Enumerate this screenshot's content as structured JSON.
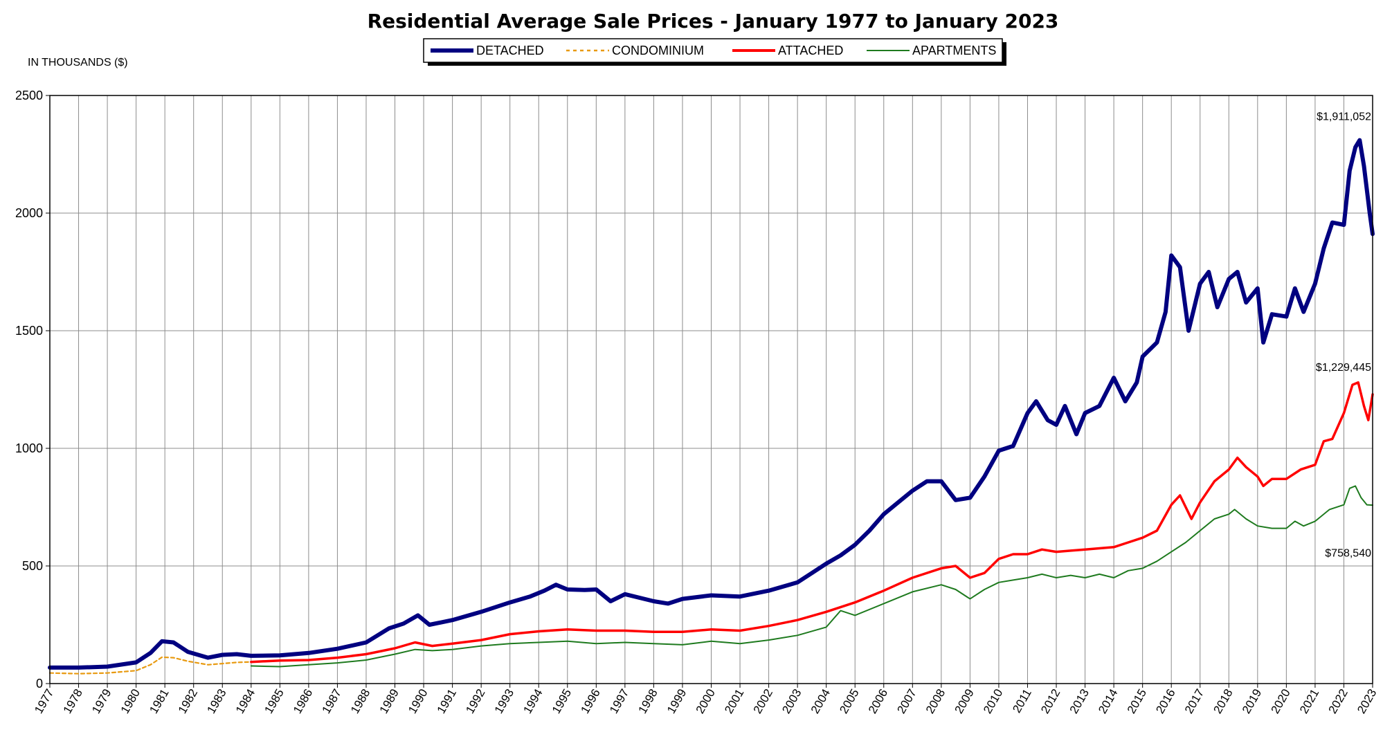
{
  "chart_data": {
    "type": "line",
    "title": "Residential Average Sale Prices  -  January 1977 to January 2023",
    "ylabel": "IN THOUSANDS ($)",
    "ylim": [
      0,
      2500
    ],
    "yticks": [
      0,
      500,
      1000,
      1500,
      2000,
      2500
    ],
    "xlim": [
      1977,
      2023
    ],
    "x_tick_labels": [
      "1977",
      "1978",
      "1979",
      "1980",
      "1981",
      "1982",
      "1983",
      "1984",
      "1985",
      "1986",
      "1987",
      "1988",
      "1989",
      "1990",
      "1991",
      "1992",
      "1993",
      "1994",
      "1995",
      "1996",
      "1997",
      "1998",
      "1999",
      "2000",
      "2001",
      "2002",
      "2003",
      "2004",
      "2005",
      "2006",
      "2007",
      "2008",
      "2009",
      "2010",
      "2011",
      "2012",
      "2013",
      "2014",
      "2015",
      "2016",
      "2017",
      "2018",
      "2019",
      "2020",
      "2021",
      "2022",
      "2023"
    ],
    "grid": true,
    "legend_position": "top-center",
    "series": [
      {
        "name": "DETACHED",
        "color": "#000080",
        "style": "solid-thick",
        "points": [
          [
            1977,
            68
          ],
          [
            1978,
            68
          ],
          [
            1979,
            72
          ],
          [
            1980,
            90
          ],
          [
            1980.5,
            130
          ],
          [
            1980.9,
            180
          ],
          [
            1981.3,
            175
          ],
          [
            1981.8,
            135
          ],
          [
            1982.5,
            110
          ],
          [
            1983,
            122
          ],
          [
            1983.5,
            125
          ],
          [
            1984,
            118
          ],
          [
            1985,
            120
          ],
          [
            1986,
            130
          ],
          [
            1987,
            148
          ],
          [
            1988,
            175
          ],
          [
            1988.8,
            235
          ],
          [
            1989.3,
            255
          ],
          [
            1989.8,
            290
          ],
          [
            1990.2,
            250
          ],
          [
            1991,
            270
          ],
          [
            1992,
            305
          ],
          [
            1993,
            345
          ],
          [
            1993.7,
            370
          ],
          [
            1994.2,
            395
          ],
          [
            1994.6,
            420
          ],
          [
            1995,
            400
          ],
          [
            1995.6,
            398
          ],
          [
            1996,
            400
          ],
          [
            1996.5,
            350
          ],
          [
            1997,
            380
          ],
          [
            1998,
            350
          ],
          [
            1998.5,
            340
          ],
          [
            1999,
            360
          ],
          [
            2000,
            375
          ],
          [
            2001,
            370
          ],
          [
            2002,
            395
          ],
          [
            2003,
            430
          ],
          [
            2003.5,
            470
          ],
          [
            2004,
            510
          ],
          [
            2004.5,
            545
          ],
          [
            2005,
            590
          ],
          [
            2005.5,
            650
          ],
          [
            2006,
            720
          ],
          [
            2006.5,
            770
          ],
          [
            2007,
            820
          ],
          [
            2007.5,
            860
          ],
          [
            2008,
            860
          ],
          [
            2008.5,
            780
          ],
          [
            2009,
            790
          ],
          [
            2009.5,
            880
          ],
          [
            2010,
            990
          ],
          [
            2010.5,
            1010
          ],
          [
            2011,
            1150
          ],
          [
            2011.3,
            1200
          ],
          [
            2011.7,
            1120
          ],
          [
            2012,
            1100
          ],
          [
            2012.3,
            1180
          ],
          [
            2012.7,
            1060
          ],
          [
            2013,
            1150
          ],
          [
            2013.5,
            1180
          ],
          [
            2014,
            1300
          ],
          [
            2014.4,
            1200
          ],
          [
            2014.8,
            1280
          ],
          [
            2015,
            1390
          ],
          [
            2015.5,
            1450
          ],
          [
            2015.8,
            1580
          ],
          [
            2016,
            1820
          ],
          [
            2016.3,
            1770
          ],
          [
            2016.6,
            1500
          ],
          [
            2017,
            1700
          ],
          [
            2017.3,
            1750
          ],
          [
            2017.6,
            1600
          ],
          [
            2018,
            1720
          ],
          [
            2018.3,
            1750
          ],
          [
            2018.6,
            1620
          ],
          [
            2019,
            1680
          ],
          [
            2019.2,
            1450
          ],
          [
            2019.5,
            1570
          ],
          [
            2020,
            1560
          ],
          [
            2020.3,
            1680
          ],
          [
            2020.6,
            1580
          ],
          [
            2021,
            1700
          ],
          [
            2021.3,
            1850
          ],
          [
            2021.6,
            1960
          ],
          [
            2022,
            1950
          ],
          [
            2022.2,
            2180
          ],
          [
            2022.4,
            2280
          ],
          [
            2022.55,
            2310
          ],
          [
            2022.7,
            2200
          ],
          [
            2022.9,
            2000
          ],
          [
            2023,
            1911.052
          ]
        ]
      },
      {
        "name": "CONDOMINIUM",
        "color": "#E89A10",
        "style": "dashed",
        "points": [
          [
            1977,
            45
          ],
          [
            1978,
            42
          ],
          [
            1979,
            45
          ],
          [
            1980,
            55
          ],
          [
            1980.5,
            80
          ],
          [
            1980.9,
            112
          ],
          [
            1981.3,
            110
          ],
          [
            1981.8,
            95
          ],
          [
            1982.5,
            80
          ],
          [
            1983,
            85
          ],
          [
            1983.5,
            90
          ],
          [
            1984,
            92
          ]
        ]
      },
      {
        "name": "ATTACHED",
        "color": "#FF0000",
        "style": "solid",
        "points": [
          [
            1984,
            92
          ],
          [
            1985,
            98
          ],
          [
            1986,
            100
          ],
          [
            1987,
            110
          ],
          [
            1988,
            125
          ],
          [
            1989,
            150
          ],
          [
            1989.7,
            175
          ],
          [
            1990.3,
            160
          ],
          [
            1991,
            170
          ],
          [
            1992,
            185
          ],
          [
            1993,
            210
          ],
          [
            1994,
            222
          ],
          [
            1995,
            230
          ],
          [
            1996,
            225
          ],
          [
            1997,
            225
          ],
          [
            1998,
            220
          ],
          [
            1999,
            220
          ],
          [
            2000,
            230
          ],
          [
            2001,
            225
          ],
          [
            2002,
            245
          ],
          [
            2003,
            270
          ],
          [
            2004,
            305
          ],
          [
            2005,
            345
          ],
          [
            2006,
            395
          ],
          [
            2007,
            450
          ],
          [
            2008,
            490
          ],
          [
            2008.5,
            500
          ],
          [
            2009,
            450
          ],
          [
            2009.5,
            470
          ],
          [
            2010,
            530
          ],
          [
            2010.5,
            550
          ],
          [
            2011,
            550
          ],
          [
            2011.5,
            570
          ],
          [
            2012,
            560
          ],
          [
            2012.5,
            565
          ],
          [
            2013,
            570
          ],
          [
            2013.5,
            575
          ],
          [
            2014,
            580
          ],
          [
            2014.5,
            600
          ],
          [
            2015,
            620
          ],
          [
            2015.5,
            650
          ],
          [
            2016,
            760
          ],
          [
            2016.3,
            800
          ],
          [
            2016.7,
            700
          ],
          [
            2017,
            770
          ],
          [
            2017.5,
            860
          ],
          [
            2018,
            910
          ],
          [
            2018.3,
            960
          ],
          [
            2018.6,
            920
          ],
          [
            2019,
            880
          ],
          [
            2019.2,
            840
          ],
          [
            2019.5,
            870
          ],
          [
            2020,
            870
          ],
          [
            2020.5,
            910
          ],
          [
            2021,
            930
          ],
          [
            2021.3,
            1030
          ],
          [
            2021.6,
            1040
          ],
          [
            2022,
            1150
          ],
          [
            2022.3,
            1270
          ],
          [
            2022.5,
            1280
          ],
          [
            2022.7,
            1180
          ],
          [
            2022.85,
            1120
          ],
          [
            2023,
            1229.445
          ]
        ]
      },
      {
        "name": "APARTMENTS",
        "color": "#1E7A1E",
        "style": "solid-thin",
        "points": [
          [
            1984,
            75
          ],
          [
            1985,
            72
          ],
          [
            1986,
            80
          ],
          [
            1987,
            88
          ],
          [
            1988,
            100
          ],
          [
            1989,
            125
          ],
          [
            1989.7,
            145
          ],
          [
            1990.3,
            140
          ],
          [
            1991,
            145
          ],
          [
            1992,
            160
          ],
          [
            1993,
            170
          ],
          [
            1994,
            175
          ],
          [
            1995,
            180
          ],
          [
            1996,
            170
          ],
          [
            1997,
            175
          ],
          [
            1998,
            170
          ],
          [
            1999,
            165
          ],
          [
            2000,
            180
          ],
          [
            2001,
            170
          ],
          [
            2002,
            185
          ],
          [
            2003,
            205
          ],
          [
            2004,
            240
          ],
          [
            2004.5,
            310
          ],
          [
            2005,
            290
          ],
          [
            2006,
            340
          ],
          [
            2007,
            390
          ],
          [
            2008,
            420
          ],
          [
            2008.5,
            400
          ],
          [
            2009,
            360
          ],
          [
            2009.5,
            400
          ],
          [
            2010,
            430
          ],
          [
            2010.5,
            440
          ],
          [
            2011,
            450
          ],
          [
            2011.5,
            465
          ],
          [
            2012,
            450
          ],
          [
            2012.5,
            460
          ],
          [
            2013,
            450
          ],
          [
            2013.5,
            465
          ],
          [
            2014,
            450
          ],
          [
            2014.5,
            480
          ],
          [
            2015,
            490
          ],
          [
            2015.5,
            520
          ],
          [
            2016,
            560
          ],
          [
            2016.5,
            600
          ],
          [
            2017,
            650
          ],
          [
            2017.5,
            700
          ],
          [
            2018,
            720
          ],
          [
            2018.2,
            740
          ],
          [
            2018.6,
            700
          ],
          [
            2019,
            670
          ],
          [
            2019.5,
            660
          ],
          [
            2020,
            660
          ],
          [
            2020.3,
            690
          ],
          [
            2020.6,
            670
          ],
          [
            2021,
            690
          ],
          [
            2021.5,
            740
          ],
          [
            2022,
            760
          ],
          [
            2022.2,
            830
          ],
          [
            2022.4,
            840
          ],
          [
            2022.6,
            790
          ],
          [
            2022.8,
            760
          ],
          [
            2023,
            758.54
          ]
        ]
      }
    ],
    "end_labels": [
      {
        "series": "DETACHED",
        "text": "$1,911,052",
        "anchor_value": 2395
      },
      {
        "series": "ATTACHED",
        "text": "$1,229,445",
        "anchor_value": 1330
      },
      {
        "series": "APARTMENTS",
        "text": "$758,540",
        "anchor_value": 540
      }
    ]
  }
}
